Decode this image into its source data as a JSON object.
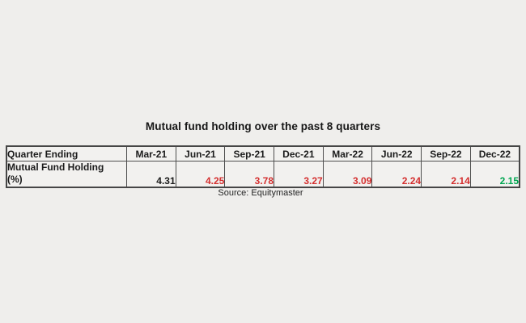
{
  "page": {
    "background": "#efeeec"
  },
  "title": "Mutual fund holding over the past 8 quarters",
  "source": "Source: Equitymaster",
  "colors": {
    "value_black": "#1b1b1b",
    "value_red": "#d42f2f",
    "value_green": "#00a651",
    "border": "#4f4f4f"
  },
  "table": {
    "corner_header": "Quarter Ending",
    "quarters": [
      "Mar-21",
      "Jun-21",
      "Sep-21",
      "Dec-21",
      "Mar-22",
      "Jun-22",
      "Sep-22",
      "Dec-22"
    ],
    "row_label_line1": "Mutual Fund Holding",
    "row_label_line2": "(%)",
    "values": [
      {
        "text": "4.31",
        "color": "#1b1b1b"
      },
      {
        "text": "4.25",
        "color": "#d42f2f"
      },
      {
        "text": "3.78",
        "color": "#d42f2f"
      },
      {
        "text": "3.27",
        "color": "#d42f2f"
      },
      {
        "text": "3.09",
        "color": "#d42f2f"
      },
      {
        "text": "2.24",
        "color": "#d42f2f"
      },
      {
        "text": "2.14",
        "color": "#d42f2f"
      },
      {
        "text": "2.15",
        "color": "#00a651"
      }
    ]
  },
  "chart_data": {
    "type": "table",
    "title": "Mutual fund holding over the past 8 quarters",
    "categories": [
      "Mar-21",
      "Jun-21",
      "Sep-21",
      "Dec-21",
      "Mar-22",
      "Jun-22",
      "Sep-22",
      "Dec-22"
    ],
    "series": [
      {
        "name": "Mutual Fund Holding (%)",
        "values": [
          4.31,
          4.25,
          3.78,
          3.27,
          3.09,
          2.24,
          2.14,
          2.15
        ]
      }
    ],
    "value_color_semantics": [
      "black",
      "red",
      "red",
      "red",
      "red",
      "red",
      "red",
      "green"
    ],
    "source": "Source: Equitymaster",
    "layout": "single row table, first column is row label, header row of quarter labels"
  }
}
